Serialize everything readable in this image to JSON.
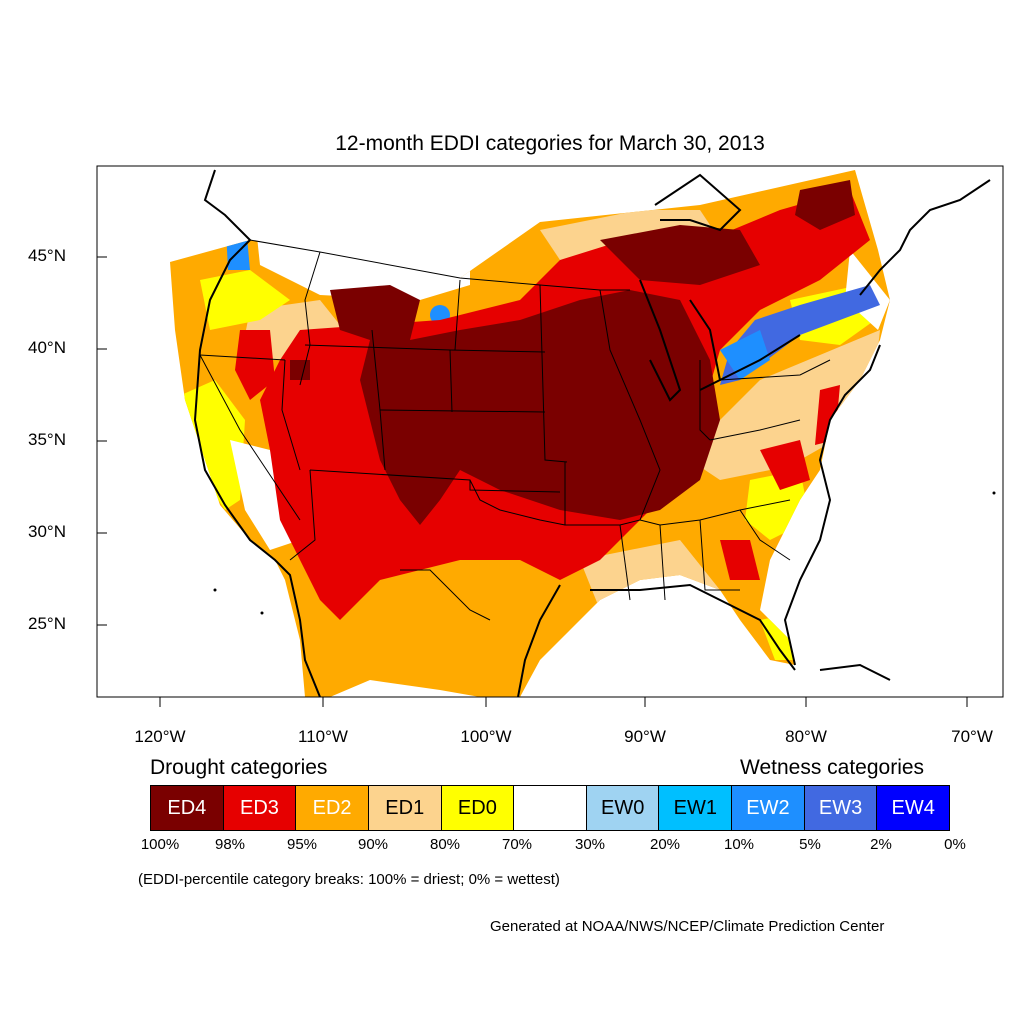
{
  "title": "12-month EDDI categories for March 30, 2013",
  "axes": {
    "lat_labels": [
      "45°N",
      "40°N",
      "35°N",
      "30°N",
      "25°N"
    ],
    "lat_values": [
      45,
      40,
      35,
      30,
      25
    ],
    "lon_labels": [
      "120°W",
      "110°W",
      "100°W",
      "90°W",
      "80°W",
      "70°W"
    ],
    "lon_values": [
      -120,
      -110,
      -100,
      -90,
      -80,
      -70
    ]
  },
  "legend": {
    "drought_heading": "Drought categories",
    "wetness_heading": "Wetness categories",
    "categories": [
      {
        "label": "ED4",
        "color": "#7a0000",
        "text_color": "#ffffff"
      },
      {
        "label": "ED3",
        "color": "#e60000",
        "text_color": "#ffffff"
      },
      {
        "label": "ED2",
        "color": "#ffaa00",
        "text_color": "#ffffff"
      },
      {
        "label": "ED1",
        "color": "#fcd38e",
        "text_color": "#000000"
      },
      {
        "label": "ED0",
        "color": "#ffff00",
        "text_color": "#000000"
      },
      {
        "label": "",
        "color": "#ffffff",
        "text_color": "#000000"
      },
      {
        "label": "EW0",
        "color": "#9fd3f2",
        "text_color": "#000000"
      },
      {
        "label": "EW1",
        "color": "#00bfff",
        "text_color": "#000000"
      },
      {
        "label": "EW2",
        "color": "#1e8fff",
        "text_color": "#ffffff"
      },
      {
        "label": "EW3",
        "color": "#4169e1",
        "text_color": "#ffffff"
      },
      {
        "label": "EW4",
        "color": "#0000ff",
        "text_color": "#ffffff"
      }
    ],
    "breaks": [
      "100%",
      "98%",
      "95%",
      "90%",
      "80%",
      "70%",
      "30%",
      "20%",
      "10%",
      "5%",
      "2%",
      "0%"
    ]
  },
  "note": "(EDDI-percentile category breaks: 100% = driest; 0% = wettest)",
  "credit": "Generated at NOAA/NWS/NCEP/Climate Prediction Center"
}
